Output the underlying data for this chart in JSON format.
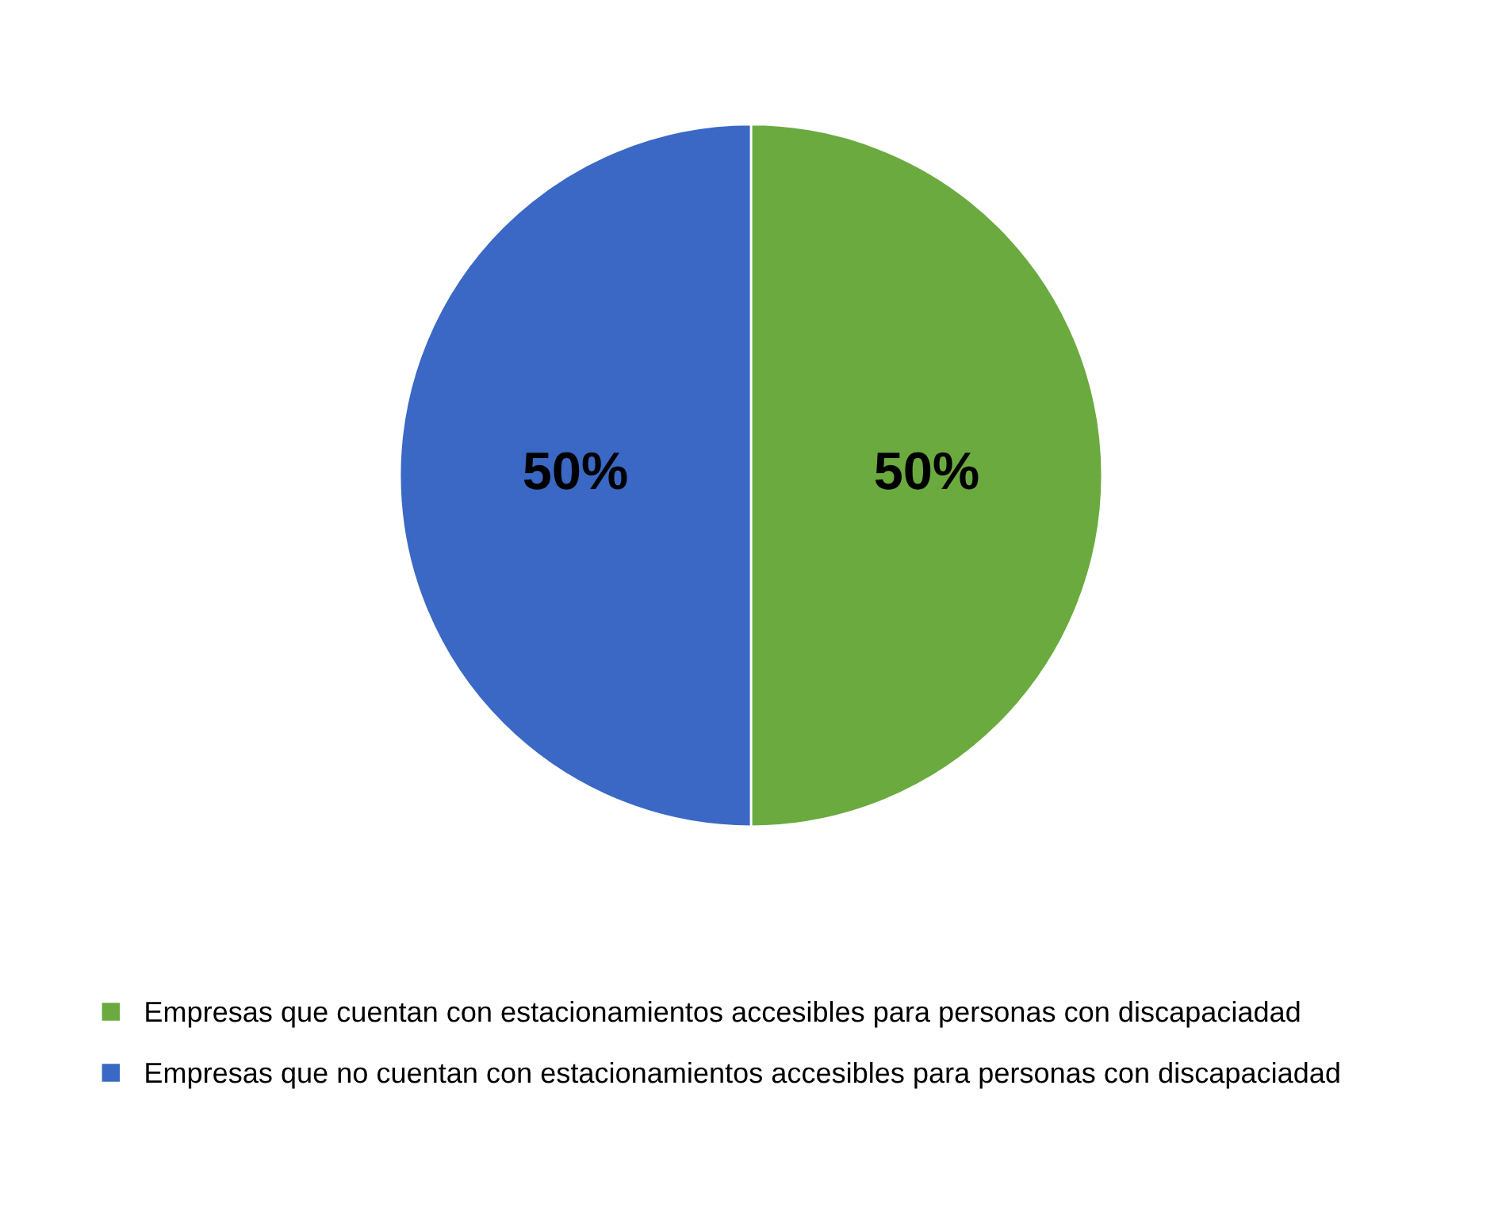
{
  "chart_data": {
    "type": "pie",
    "categories": [
      "Empresas que cuentan con estacionamientos accesibles para personas con discapaciadad",
      "Empresas que no cuentan con estacionamientos accesibles para personas con discapaciadad"
    ],
    "values": [
      50,
      50
    ],
    "colors": [
      "#6aaa3f",
      "#3a68c4"
    ],
    "value_labels": [
      "50%",
      "50%"
    ],
    "legend": "bottom"
  }
}
